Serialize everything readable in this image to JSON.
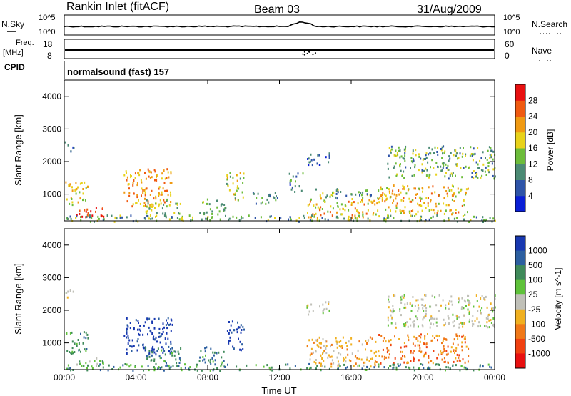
{
  "header": {
    "station": "Rankin Inlet (fitACF)",
    "beam": "Beam 03",
    "date": "31/Aug/2009"
  },
  "strip_labels": {
    "nsky": "N.Sky",
    "nsky_ticks": [
      "10^5",
      "10^0"
    ],
    "nsearch": "N.Search",
    "nsearch_ticks": [
      "10^5",
      "10^0"
    ],
    "freq": "Freq.",
    "freq_unit": "[MHz]",
    "freq_ticks": [
      "18",
      "8"
    ],
    "nave": "Nave",
    "nave_ticks": [
      "60",
      "0"
    ],
    "cpid": "CPID",
    "cpid_value": "normalsound (fast) 157"
  },
  "chart_data": [
    {
      "type": "heatmap",
      "ylabel": "Slant Range [km]",
      "yticks": [
        "1000",
        "2000",
        "3000",
        "4000"
      ],
      "ylim": [
        180,
        4500
      ],
      "colorbar": {
        "label": "Power [dB]",
        "ticks": [
          "4",
          "8",
          "12",
          "16",
          "20",
          "24",
          "28"
        ],
        "colors": [
          "#0a1fd6",
          "#2e54a8",
          "#4b8a74",
          "#6cbc3a",
          "#e8d21a",
          "#f09a12",
          "#f05a10",
          "#e81010"
        ]
      },
      "regions": [
        {
          "t": [
            0.6,
            2.2
          ],
          "r": [
            250,
            600
          ],
          "v": 30
        },
        {
          "t": [
            0.0,
            1.3
          ],
          "r": [
            700,
            1400
          ],
          "v": 18
        },
        {
          "t": [
            0.0,
            0.5
          ],
          "r": [
            2300,
            2650
          ],
          "v": 9
        },
        {
          "t": [
            3.3,
            6.0
          ],
          "r": [
            650,
            1800
          ],
          "v": 22
        },
        {
          "t": [
            4.5,
            6.5
          ],
          "r": [
            300,
            900
          ],
          "v": 14
        },
        {
          "t": [
            7.5,
            9.0
          ],
          "r": [
            400,
            900
          ],
          "v": 12
        },
        {
          "t": [
            9.0,
            10.0
          ],
          "r": [
            800,
            1700
          ],
          "v": 16
        },
        {
          "t": [
            10.5,
            12.0
          ],
          "r": [
            700,
            1100
          ],
          "v": 10
        },
        {
          "t": [
            12.5,
            13.3
          ],
          "r": [
            1100,
            1700
          ],
          "v": 9
        },
        {
          "t": [
            13.5,
            14.8
          ],
          "r": [
            1900,
            2300
          ],
          "v": 6
        },
        {
          "t": [
            13.5,
            17.5
          ],
          "r": [
            300,
            900
          ],
          "v": 20
        },
        {
          "t": [
            14.0,
            17.5
          ],
          "r": [
            900,
            1200
          ],
          "v": 12
        },
        {
          "t": [
            17.5,
            22.5
          ],
          "r": [
            400,
            1300
          ],
          "v": 20
        },
        {
          "t": [
            18.0,
            24.0
          ],
          "r": [
            1500,
            2500
          ],
          "v": 12
        },
        {
          "t": [
            0.0,
            24.0
          ],
          "r": [
            180,
            380
          ],
          "v": 12
        }
      ]
    },
    {
      "type": "heatmap",
      "ylabel": "Slant Range [km]",
      "yticks": [
        "1000",
        "2000",
        "3000",
        "4000"
      ],
      "ylim": [
        180,
        4500
      ],
      "xlabel": "Time UT",
      "xticks": [
        "00:00",
        "04:00",
        "08:00",
        "12:00",
        "16:00",
        "20:00",
        "00:00"
      ],
      "xlim": [
        0,
        24
      ],
      "colorbar": {
        "label": "Velocity [m s^-1]",
        "ticks": [
          "1000",
          "500",
          "100",
          "25",
          "-25",
          "-100",
          "-500",
          "-1000"
        ],
        "colors": [
          "#1838b0",
          "#2c5fa0",
          "#3f8a5a",
          "#5fc23a",
          "#c0c0b8",
          "#f0b020",
          "#f07818",
          "#f04010",
          "#e81010"
        ]
      },
      "regions": [
        {
          "t": [
            0.6,
            2.2
          ],
          "r": [
            250,
            600
          ],
          "v": "25"
        },
        {
          "t": [
            0.0,
            1.3
          ],
          "r": [
            700,
            1400
          ],
          "v": "100"
        },
        {
          "t": [
            0.0,
            0.5
          ],
          "r": [
            2300,
            2650
          ],
          "v": "-25"
        },
        {
          "t": [
            3.3,
            6.0
          ],
          "r": [
            650,
            1800
          ],
          "v": "1000"
        },
        {
          "t": [
            4.5,
            6.5
          ],
          "r": [
            300,
            900
          ],
          "v": "100"
        },
        {
          "t": [
            7.5,
            9.0
          ],
          "r": [
            400,
            900
          ],
          "v": "100"
        },
        {
          "t": [
            9.0,
            10.0
          ],
          "r": [
            800,
            1700
          ],
          "v": "1000"
        },
        {
          "t": [
            13.5,
            14.8
          ],
          "r": [
            1900,
            2300
          ],
          "v": "-25"
        },
        {
          "t": [
            13.5,
            17.5
          ],
          "r": [
            300,
            1200
          ],
          "v": "-100"
        },
        {
          "t": [
            17.5,
            22.5
          ],
          "r": [
            400,
            1300
          ],
          "v": "-500"
        },
        {
          "t": [
            18.0,
            24.0
          ],
          "r": [
            1500,
            2500
          ],
          "v": "-25"
        },
        {
          "t": [
            0.0,
            24.0
          ],
          "r": [
            180,
            380
          ],
          "v": "100"
        }
      ]
    }
  ]
}
